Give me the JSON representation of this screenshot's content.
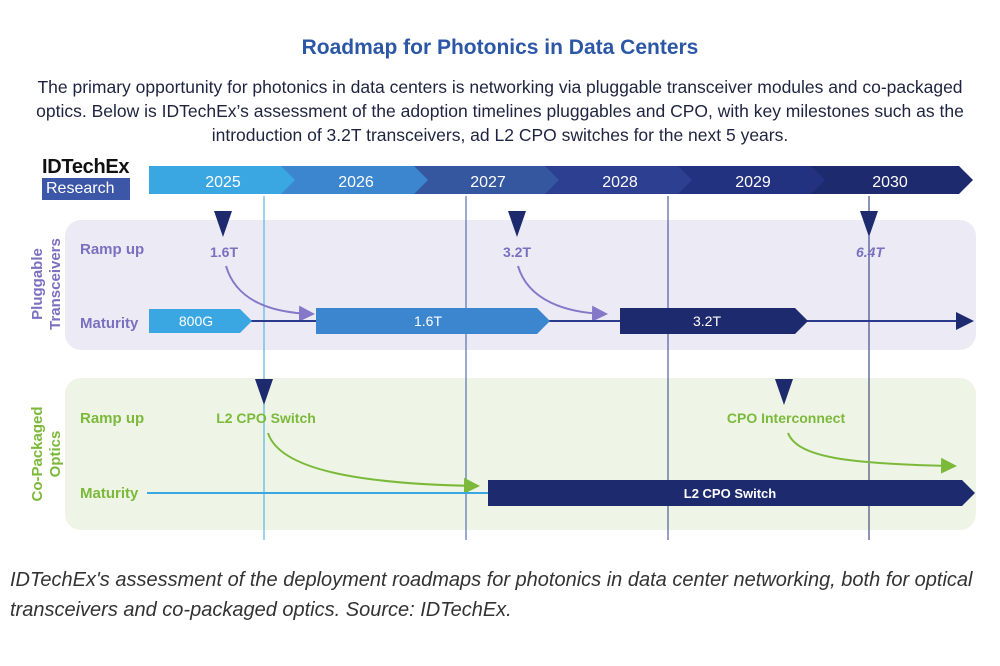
{
  "title": "Roadmap for Photonics in Data Centers",
  "intro": "The primary opportunity for photonics in data centers is networking via pluggable transceiver modules and co-packaged optics. Below is IDTechEx’s assessment of the adoption timelines pluggables and CPO, with key milestones such as the introduction of 3.2T transceivers, ad L2 CPO switches for the next 5 years.",
  "logo": {
    "name": "IDTechEx",
    "sub": "Research"
  },
  "years": [
    "2025",
    "2026",
    "2027",
    "2028",
    "2029",
    "2030"
  ],
  "pluggable": {
    "label_line1": "Pluggable",
    "label_line2": "Transceivers",
    "ramp_label": "Ramp up",
    "maturity_label": "Maturity",
    "ramp_markers": [
      "1.6T",
      "3.2T",
      "6.4T"
    ],
    "maturity_bars": [
      "800G",
      "1.6T",
      "3.2T"
    ]
  },
  "cpo": {
    "label_line1": "Co-Packaged",
    "label_line2": "Optics",
    "ramp_label": "Ramp up",
    "maturity_label": "Maturity",
    "ramp_markers": [
      "L2 CPO Switch",
      "CPO Interconnect"
    ],
    "maturity_bars": [
      "L2 CPO Switch"
    ]
  },
  "caption": "IDTechEx's assessment of the deployment roadmaps for photonics in data center networking, both for optical transceivers and co-packaged optics. Source: IDTechEx.",
  "colors": {
    "title": "#2b57a6",
    "pluggable_accent": "#7b6fbf",
    "cpo_accent": "#7cb93a",
    "pluggable_bg": "#ecebf5",
    "cpo_bg": "#eef5e6",
    "dark_navy": "#1e2a6e"
  }
}
